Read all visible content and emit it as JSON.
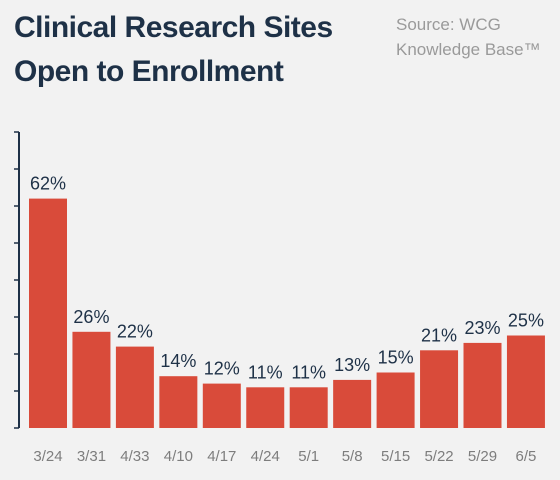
{
  "header": {
    "title_line1": "Clinical Research Sites",
    "title_line2": "Open to Enrollment",
    "source_line1": "Source: WCG",
    "source_line2": "Knowledge Base™"
  },
  "colors": {
    "bar": "#d94b3a",
    "axis": "#1e3147",
    "background": "#f2f2f2"
  },
  "chart_data": {
    "type": "bar",
    "title": "Clinical Research Sites Open to Enrollment",
    "categories": [
      "3/24",
      "3/31",
      "4/33",
      "4/10",
      "4/17",
      "4/24",
      "5/1",
      "5/8",
      "5/15",
      "5/22",
      "5/29",
      "6/5"
    ],
    "values": [
      62,
      26,
      22,
      14,
      12,
      11,
      11,
      13,
      15,
      21,
      23,
      25
    ],
    "value_labels": [
      "62%",
      "26%",
      "22%",
      "14%",
      "12%",
      "11%",
      "11%",
      "13%",
      "15%",
      "21%",
      "23%",
      "25%"
    ],
    "unit": "%",
    "ylim": [
      0,
      80
    ],
    "grid": false,
    "legend": "none"
  }
}
